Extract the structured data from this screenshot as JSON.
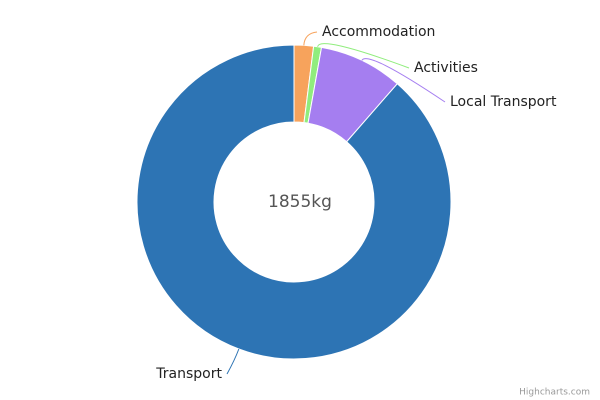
{
  "chart_data": {
    "type": "donut",
    "center_label": "1855kg",
    "categories": [
      "Accommodation",
      "Activities",
      "Local Transport",
      "Transport"
    ],
    "values": [
      37,
      15,
      160,
      1643
    ],
    "colors": [
      "#f7a35c",
      "#90ed7d",
      "#a57ef0",
      "#2d74b4"
    ],
    "credit": "Highcharts.com"
  }
}
